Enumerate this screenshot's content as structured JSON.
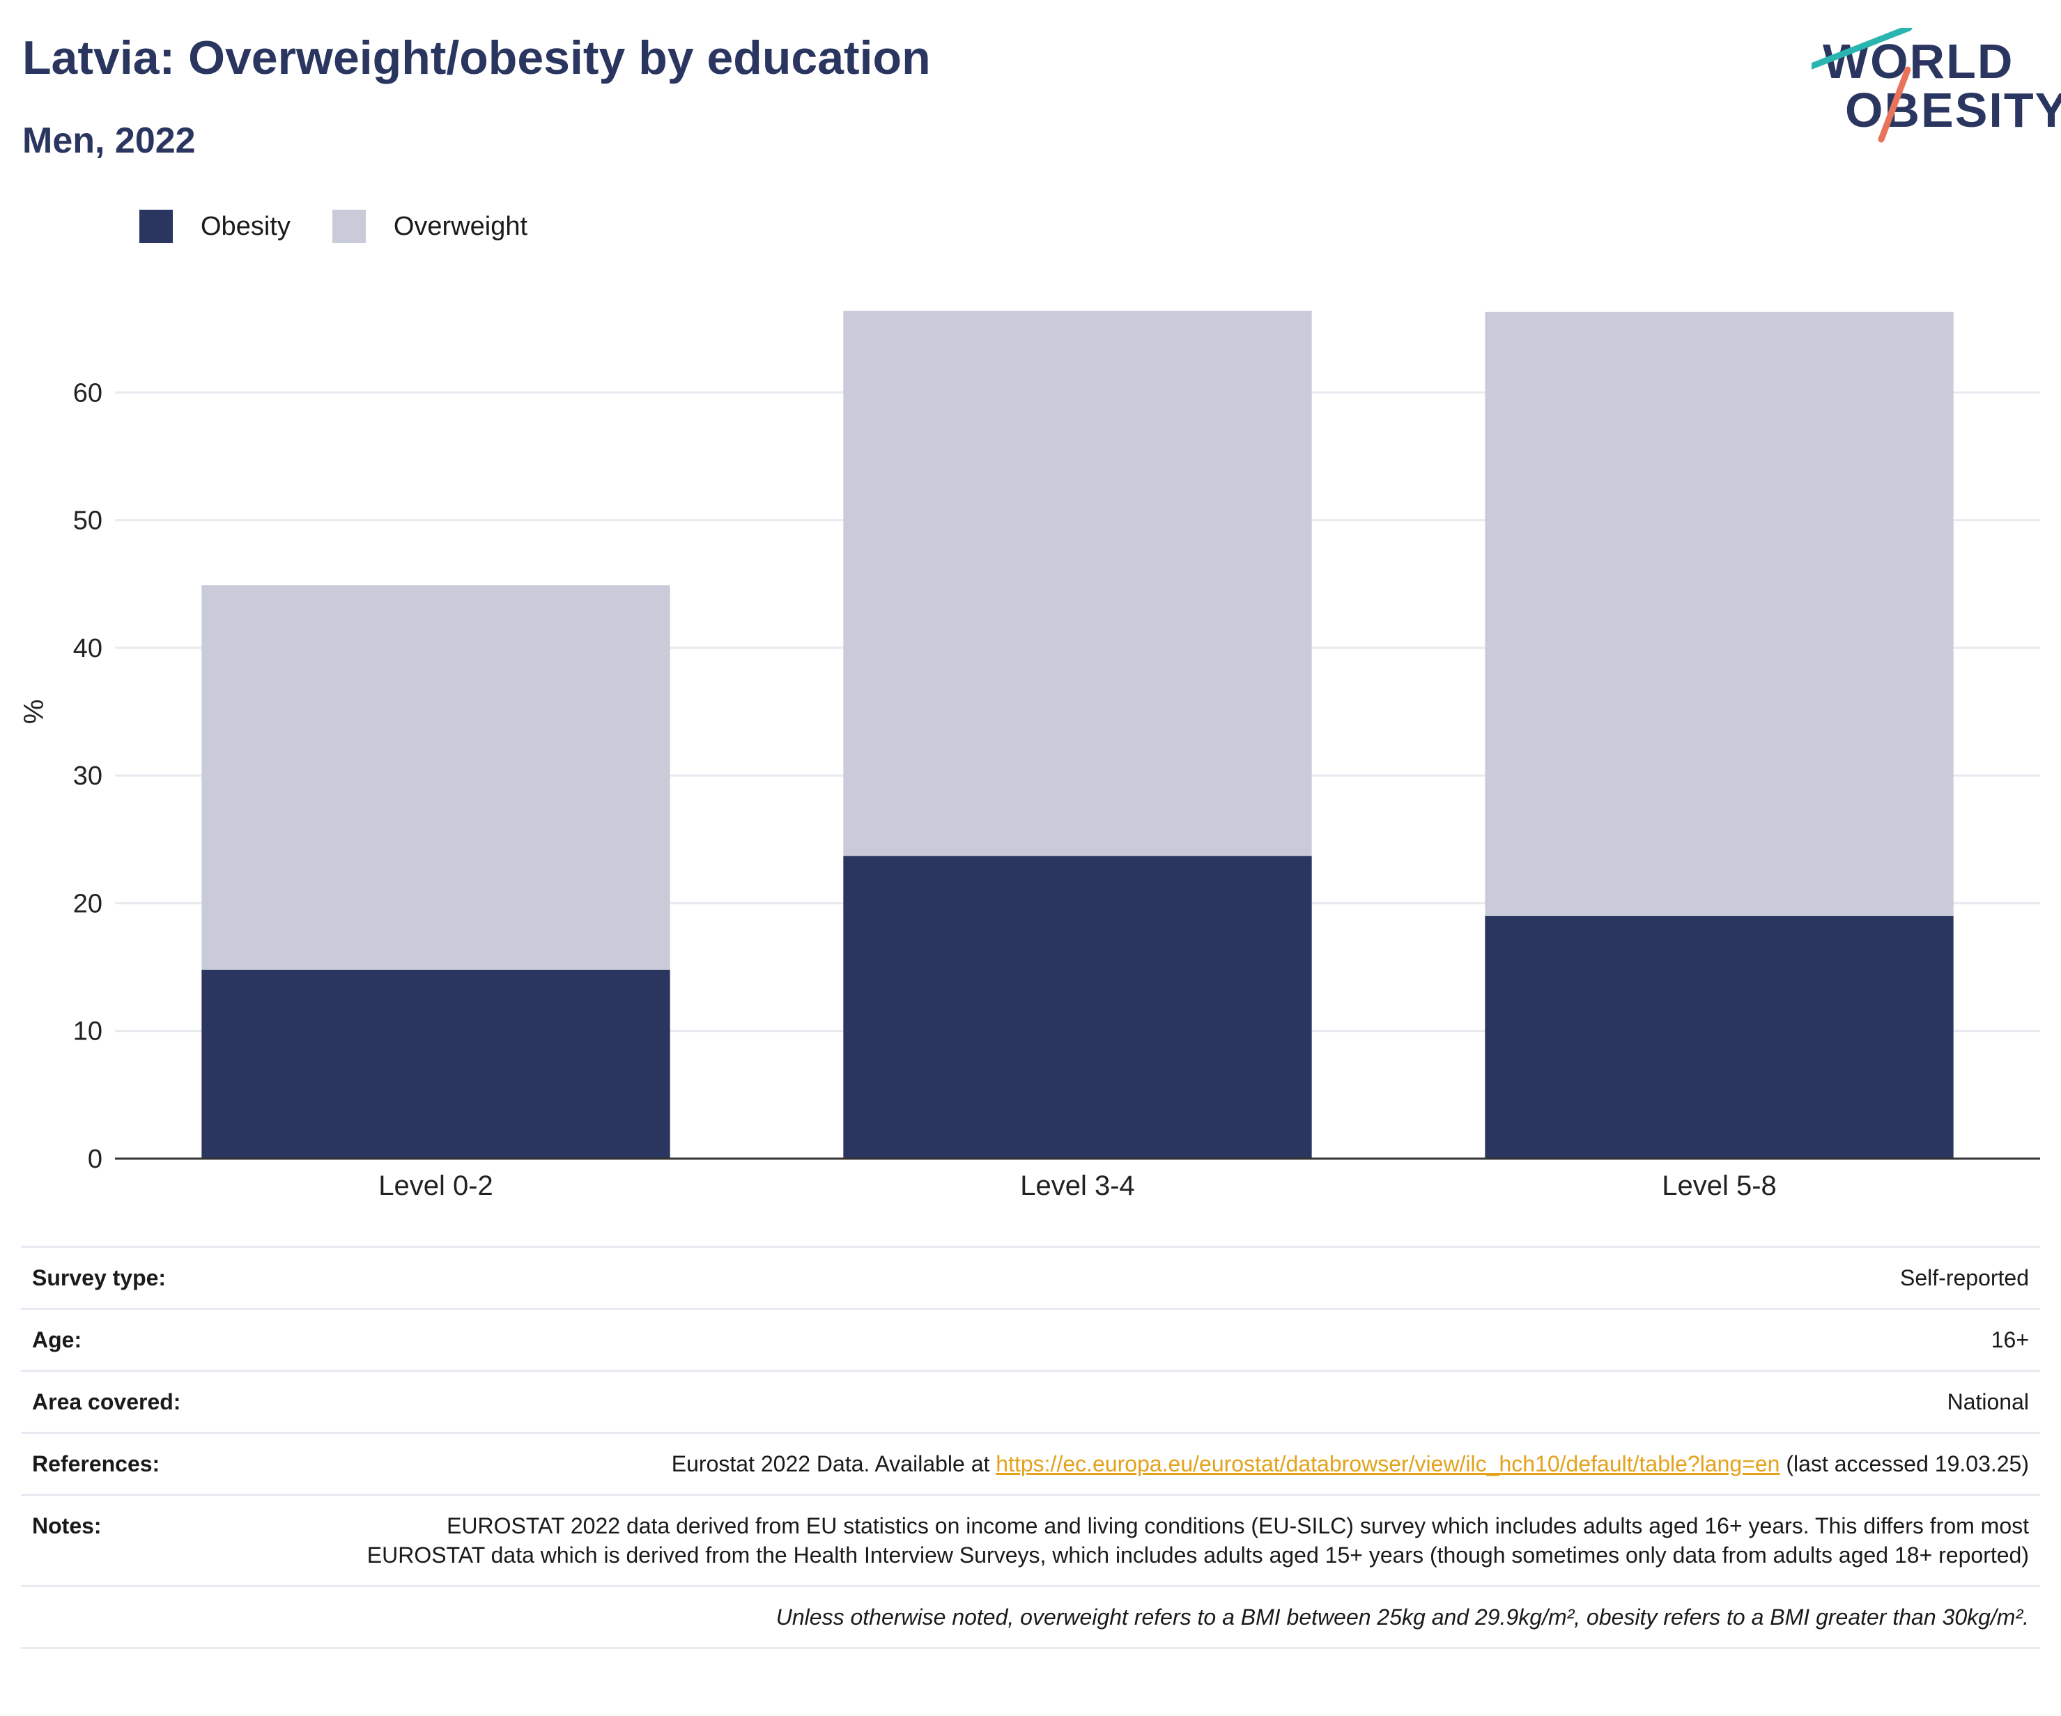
{
  "header": {
    "title": "Latvia: Overweight/obesity by education",
    "subtitle": "Men, 2022",
    "logo_line1": "WORLD",
    "logo_line2": "OBESITY"
  },
  "legend": [
    {
      "label": "Obesity",
      "color": "#2a365f"
    },
    {
      "label": "Overweight",
      "color": "#c9ccd8"
    }
  ],
  "chart_data": {
    "type": "bar",
    "stacked": true,
    "categories": [
      "Level 0-2",
      "Level 3-4",
      "Level 5-8"
    ],
    "series": [
      {
        "name": "Obesity",
        "color": "#2a365f",
        "values": [
          14.8,
          23.7,
          19.0
        ]
      },
      {
        "name": "Overweight",
        "color": "#c9ccd8",
        "values": [
          30.1,
          42.7,
          47.3
        ]
      }
    ],
    "ylabel": "%",
    "ylim": [
      0,
      70
    ],
    "yticks": [
      0,
      10,
      20,
      30,
      40,
      50,
      60
    ],
    "grid": true,
    "legend_position": "top-left"
  },
  "info": {
    "survey_type_label": "Survey type:",
    "survey_type": "Self-reported",
    "age_label": "Age:",
    "age": "16+",
    "area_label": "Area covered:",
    "area": "National",
    "references_label": "References:",
    "references_prefix": "Eurostat 2022 Data. Available at ",
    "references_link": "https://ec.europa.eu/eurostat/databrowser/view/ilc_hch10/default/table?lang=en",
    "references_suffix": " (last accessed 19.03.25)",
    "notes_label": "Notes:",
    "notes": "EUROSTAT 2022 data derived from EU statistics on income and living conditions (EU-SILC) survey which includes adults aged 16+ years. This differs from most EUROSTAT data which is derived from the Health Interview Surveys, which includes adults aged 15+ years (though sometimes only data from adults aged 18+ reported)",
    "footnote": "Unless otherwise noted, overweight refers to a BMI between 25kg and 29.9kg/m², obesity refers to a BMI greater than 30kg/m²."
  }
}
